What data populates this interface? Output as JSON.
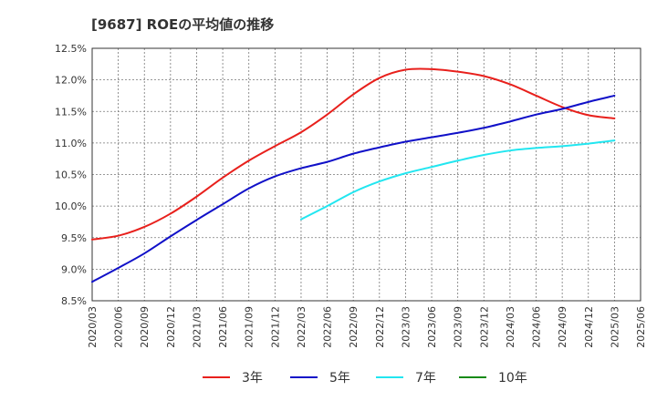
{
  "title": "[9687]  ROEの平均値の推移",
  "chart_data": {
    "type": "line",
    "title": "[9687]  ROEの平均値の推移",
    "xlabel": "",
    "ylabel": "",
    "x_ticks": [
      "2020/03",
      "2020/06",
      "2020/09",
      "2020/12",
      "2021/03",
      "2021/06",
      "2021/09",
      "2021/12",
      "2022/03",
      "2022/06",
      "2022/09",
      "2022/12",
      "2023/03",
      "2023/06",
      "2023/09",
      "2023/12",
      "2024/03",
      "2024/06",
      "2024/09",
      "2024/12",
      "2025/03",
      "2025/06"
    ],
    "y_ticks": [
      "8.5%",
      "9.0%",
      "9.5%",
      "10.0%",
      "10.5%",
      "11.0%",
      "11.5%",
      "12.0%",
      "12.5%"
    ],
    "ylim": [
      8.5,
      12.5
    ],
    "grid": true,
    "legend_position": "bottom",
    "series": [
      {
        "name": "3年",
        "color": "#e8201c",
        "x": [
          "2020/03",
          "2020/06",
          "2020/09",
          "2020/12",
          "2021/03",
          "2021/06",
          "2021/09",
          "2021/12",
          "2022/03",
          "2022/06",
          "2022/09",
          "2022/12",
          "2023/03",
          "2023/06",
          "2023/09",
          "2023/12",
          "2024/03",
          "2024/06",
          "2024/09",
          "2024/12",
          "2025/03"
        ],
        "values": [
          9.47,
          9.53,
          9.67,
          9.88,
          10.15,
          10.45,
          10.72,
          10.95,
          11.17,
          11.45,
          11.77,
          12.03,
          12.16,
          12.17,
          12.13,
          12.06,
          11.93,
          11.75,
          11.57,
          11.44,
          11.39
        ]
      },
      {
        "name": "5年",
        "color": "#1010c8",
        "x": [
          "2020/03",
          "2020/06",
          "2020/09",
          "2020/12",
          "2021/03",
          "2021/06",
          "2021/09",
          "2021/12",
          "2022/03",
          "2022/06",
          "2022/09",
          "2022/12",
          "2023/03",
          "2023/06",
          "2023/09",
          "2023/12",
          "2024/03",
          "2024/06",
          "2024/09",
          "2024/12",
          "2025/03"
        ],
        "values": [
          8.8,
          9.02,
          9.25,
          9.52,
          9.78,
          10.03,
          10.28,
          10.47,
          10.6,
          10.7,
          10.83,
          10.93,
          11.02,
          11.09,
          11.16,
          11.24,
          11.34,
          11.45,
          11.54,
          11.65,
          11.75
        ]
      },
      {
        "name": "7年",
        "color": "#22e6f0",
        "x": [
          "2022/03",
          "2022/06",
          "2022/09",
          "2022/12",
          "2023/03",
          "2023/06",
          "2023/09",
          "2023/12",
          "2024/03",
          "2024/06",
          "2024/09",
          "2024/12",
          "2025/03"
        ],
        "values": [
          9.79,
          10.0,
          10.22,
          10.39,
          10.52,
          10.62,
          10.72,
          10.81,
          10.88,
          10.92,
          10.95,
          10.99,
          11.04
        ]
      },
      {
        "name": "10年",
        "color": "#158a15",
        "x": [],
        "values": []
      }
    ]
  }
}
